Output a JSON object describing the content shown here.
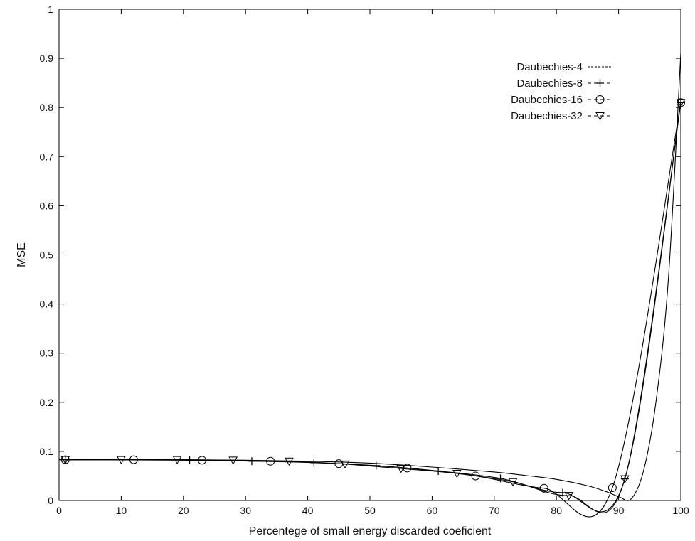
{
  "chart_data": {
    "type": "line",
    "title": "",
    "xlabel": "Percentege of small energy discarded coeficient",
    "ylabel": "MSE",
    "xlim": [
      0,
      100
    ],
    "ylim": [
      0,
      1
    ],
    "xticks": [
      0,
      10,
      20,
      30,
      40,
      50,
      60,
      70,
      80,
      90,
      100
    ],
    "yticks": [
      0,
      0.1,
      0.2,
      0.3,
      0.4,
      0.5,
      0.6,
      0.7,
      0.8,
      0.9,
      1
    ],
    "xtick_labels": [
      "0",
      "10",
      "20",
      "30",
      "40",
      "50",
      "60",
      "70",
      "80",
      "90",
      "100"
    ],
    "ytick_labels": [
      "0",
      "0.1",
      "0.2",
      "0.3",
      "0.4",
      "0.5",
      "0.6",
      "0.7",
      "0.8",
      "0.9",
      "1"
    ],
    "grid": false,
    "legend_position": "top-right",
    "series": [
      {
        "name": "Daubechies-4",
        "legend_style": "-----",
        "marker": "none",
        "x": [
          0,
          10,
          20,
          30,
          40,
          50,
          60,
          70,
          75,
          80,
          85,
          88,
          90,
          92,
          94,
          96,
          98,
          100
        ],
        "y": [
          0.083,
          0.083,
          0.083,
          0.082,
          0.08,
          0.076,
          0.068,
          0.058,
          0.051,
          0.043,
          0.03,
          0.018,
          0.008,
          0.003,
          0.06,
          0.2,
          0.45,
          0.91
        ]
      },
      {
        "name": "Daubechies-8",
        "legend_style": "--+--",
        "marker": "plus",
        "x": [
          1,
          21,
          31,
          41,
          51,
          61,
          71,
          81,
          91,
          100
        ],
        "y": [
          0.083,
          0.082,
          0.08,
          0.077,
          0.071,
          0.06,
          0.045,
          0.016,
          0.044,
          0.81
        ]
      },
      {
        "name": "Daubechies-16",
        "legend_style": "--o--",
        "marker": "circle",
        "x": [
          1,
          12,
          23,
          34,
          45,
          56,
          67,
          78,
          89,
          100
        ],
        "y": [
          0.083,
          0.083,
          0.082,
          0.08,
          0.075,
          0.066,
          0.05,
          0.025,
          0.026,
          0.81
        ]
      },
      {
        "name": "Daubechies-32",
        "legend_style": "--v--",
        "marker": "triangle-down",
        "x": [
          1,
          10,
          19,
          28,
          37,
          46,
          55,
          64,
          73,
          82,
          91,
          100
        ],
        "y": [
          0.083,
          0.083,
          0.083,
          0.082,
          0.08,
          0.074,
          0.065,
          0.055,
          0.038,
          0.01,
          0.044,
          0.81
        ]
      }
    ]
  }
}
